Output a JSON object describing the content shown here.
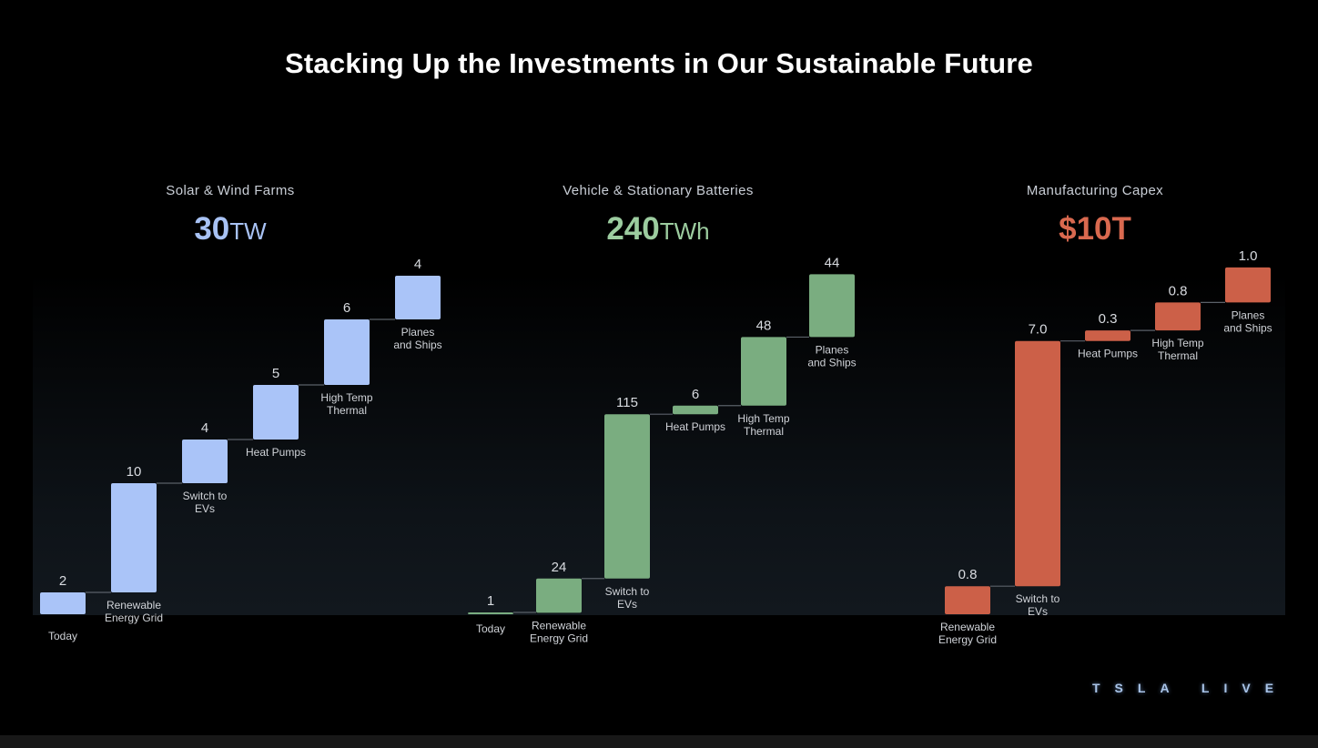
{
  "title": "Stacking Up the Investments in Our Sustainable Future",
  "brand": "TSLA LIVE",
  "chart_data": [
    {
      "type": "bar",
      "subtitle": "Solar & Wind Farms",
      "total_value": "30",
      "total_unit": "TW",
      "color": "#aac4f8",
      "text_color": "#a8c2f4",
      "categories": [
        "Today",
        "Renewable Energy Grid",
        "Switch to EVs",
        "Heat Pumps",
        "High Temp Thermal",
        "Planes and Ships"
      ],
      "values": [
        2,
        10,
        4,
        5,
        6,
        4
      ],
      "value_labels": [
        "2",
        "10",
        "4",
        "5",
        "6",
        "4"
      ]
    },
    {
      "type": "bar",
      "subtitle": "Vehicle & Stationary Batteries",
      "total_value": "240",
      "total_unit": "TWh",
      "color": "#7aad80",
      "text_color": "#9ccc9f",
      "categories": [
        "Today",
        "Renewable Energy Grid",
        "Switch to EVs",
        "Heat Pumps",
        "High Temp Thermal",
        "Planes and Ships"
      ],
      "values": [
        1,
        24,
        115,
        6,
        48,
        44
      ],
      "value_labels": [
        "1",
        "24",
        "115",
        "6",
        "48",
        "44"
      ]
    },
    {
      "type": "bar",
      "subtitle": "Manufacturing Capex",
      "total_value": "$10T",
      "total_unit": "",
      "color": "#cc6048",
      "text_color": "#d9694f",
      "categories": [
        "Renewable Energy Grid",
        "Switch to EVs",
        "Heat Pumps",
        "High Temp Thermal",
        "Planes and Ships"
      ],
      "values": [
        0.8,
        7.0,
        0.3,
        0.8,
        1.0
      ],
      "value_labels": [
        "0.8",
        "7.0",
        "0.3",
        "0.8",
        "1.0"
      ]
    }
  ]
}
